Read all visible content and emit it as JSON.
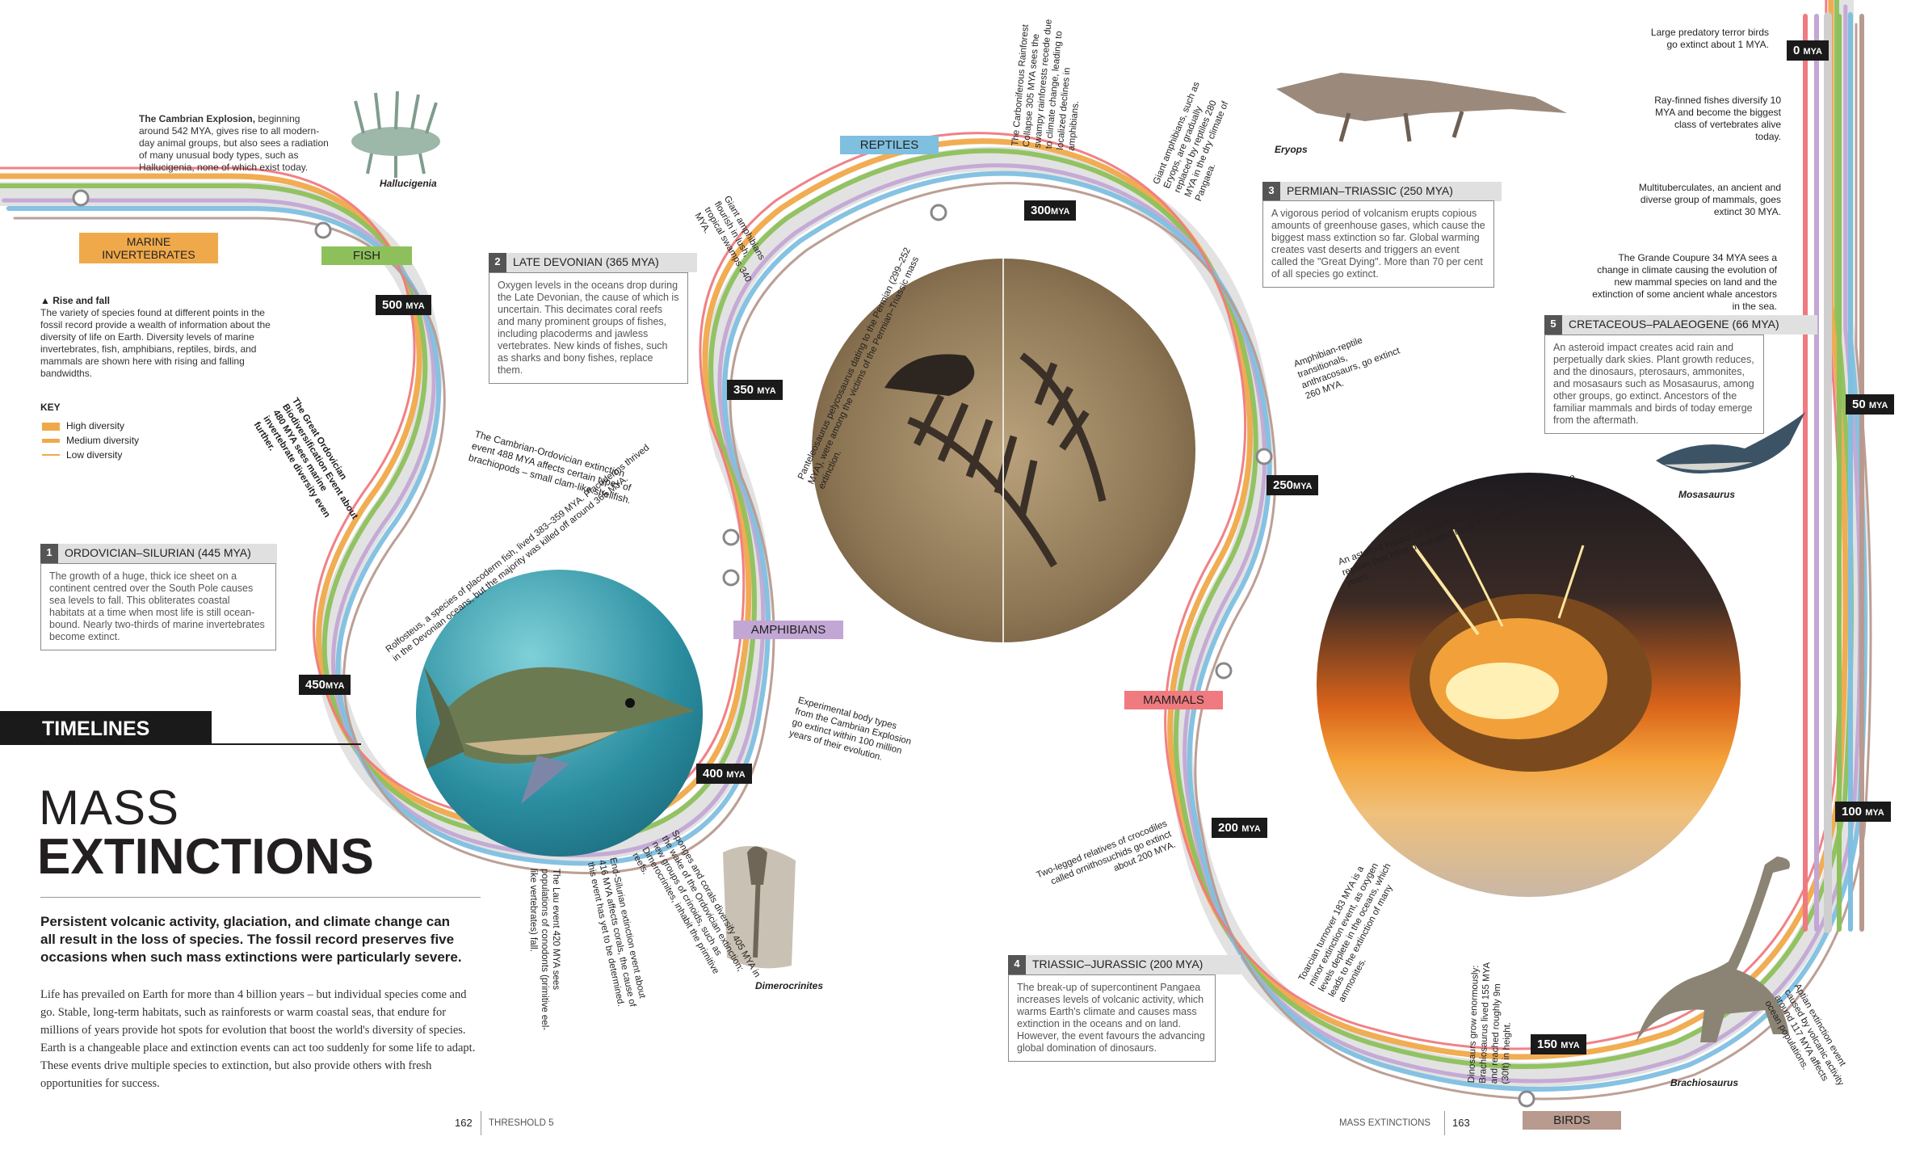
{
  "bands": {
    "colors": {
      "marine_invertebrates": "#f0a94a",
      "fish": "#8dc05b",
      "amphibians": "#c2a6d4",
      "reptiles": "#7fbfe0",
      "mammals": "#ef7a7f",
      "birds": "#b89a8f",
      "grey": "#cfcfcf"
    },
    "labels": {
      "marine": "MARINE INVERTEBRATES",
      "fish": "FISH",
      "reptiles": "REPTILES",
      "amphibians": "AMPHIBIANS",
      "mammals": "MAMMALS",
      "birds": "BIRDS"
    }
  },
  "mya_markers": {
    "m500": "500",
    "m450": "450",
    "m400": "400",
    "m350": "350",
    "m300": "300",
    "m250": "250",
    "m200": "200",
    "m150": "150",
    "m100": "100",
    "m50": "50",
    "m0": "0",
    "unit": "MYA"
  },
  "left": {
    "section": "TIMELINES",
    "title_line1": "MASS",
    "title_line2": "EXTINCTIONS",
    "intro": "Persistent volcanic activity, glaciation, and climate change can all result in the loss of species. The fossil record preserves five occasions when such mass extinctions were particularly severe.",
    "body": "Life has prevailed on Earth for more than 4 billion years – but individual species come and go. Stable, long-term habitats, such as rainforests or warm coastal seas, that endure for millions of years provide hot spots for evolution that boost the world's diversity of species. Earth is a changeable place and extinction events can act too suddenly for some life to adapt. These events drive multiple species to extinction, but also provide others with fresh opportunities for success.",
    "rise_title": "▲ Rise and fall",
    "rise_text": "The variety of species found at different points in the fossil record provide a wealth of information about the diversity of life on Earth. Diversity levels of marine invertebrates, fish, amphibians, reptiles, birds, and mammals are shown here with rising and falling bandwidths.",
    "key_title": "KEY",
    "key": [
      "High diversity",
      "Medium diversity",
      "Low diversity"
    ],
    "cambrian_bold": "The Cambrian Explosion,",
    "cambrian_text": " beginning around 542 MYA, gives rise to all modern-day animal groups, but also sees a radiation of many unusual body types, such as Hallucigenia, none of which exist today.",
    "hallucigenia": "Hallucigenia"
  },
  "events": [
    {
      "num": "1",
      "title": "ORDOVICIAN–SILURIAN (445 MYA)",
      "text": "The growth of a huge, thick ice sheet on a continent centred over the South Pole causes sea levels to fall. This obliterates coastal habitats at a time when most life is still ocean-bound. Nearly two-thirds of marine invertebrates become extinct."
    },
    {
      "num": "2",
      "title": "LATE DEVONIAN (365 MYA)",
      "text": "Oxygen levels in the oceans drop during the Late Devonian, the cause of which is uncertain. This decimates coral reefs and many prominent groups of fishes, including placoderms and jawless vertebrates. New kinds of fishes, such as sharks and bony fishes, replace them."
    },
    {
      "num": "3",
      "title": "PERMIAN–TRIASSIC (250 MYA)",
      "text": "A vigorous period of volcanism erupts copious amounts of greenhouse gases, which cause the biggest mass extinction so far. Global warming creates vast deserts and triggers an event called the \"Great Dying\". More than 70 per cent of all species go extinct."
    },
    {
      "num": "4",
      "title": "TRIASSIC–JURASSIC (200 MYA)",
      "text": "The break-up of supercontinent Pangaea increases levels of volcanic activity, which warms Earth's climate and causes mass extinction in the oceans and on land. However, the event favours the advancing global domination of dinosaurs."
    },
    {
      "num": "5",
      "title": "CRETACEOUS–PALAEOGENE (66 MYA)",
      "text": "An asteroid impact creates acid rain and perpetually dark skies. Plant growth reduces, and the dinosaurs, pterosaurs, ammonites, and mosasaurs such as Mosasaurus, among other groups, go extinct. Ancestors of the familiar mammals and birds of today emerge from the aftermath."
    }
  ],
  "annotations": {
    "ordovician_bio": "The Great Ordovician Biodiversification Event about 480 MYA sees marine invertebrate diversity even further.",
    "cambrian_ord": "The Cambrian-Ordovician extinction event 488 MYA affects certain types of brachiopods – small clam-like shellfish.",
    "rolfosteus": "Rolfosteus, a species of placoderm fish, lived 383–359 MYA. Placoderms thrived in the Devonian oceans, but the majority was killed off around 365 MYA.",
    "lau": "The Lau event 420 MYA sees populations of conodonts (primitive eel-like vertebrates) fall.",
    "end_silurian": "End-Silurian extinction event about 416 MYA affects corals, the cause of this event has yet to be determined.",
    "sponges": "Sponges and corals diversify 405 MYA in the wake of the Ordovician extinction; new groups of crinoids, such as Dimerocrinites, inhabit the primitive reefs.",
    "dimerocrinites": "Dimerocrinites",
    "experimental": "Experimental body types from the Cambrian Explosion go extinct within 100 million years of their evolution.",
    "giant_amph": "Giant amphibians flourish in lush, tropical swamps 340 MYA.",
    "panteleosaurus": "Panteleosaurus pelycosaurus dating to the Permian (299–252 MYA), were among the victims of the Permian–Triassic mass extinction.",
    "carboniferous": "The Carboniferous Rainforest Collapse 305 MYA sees the swampy rainforests recede due to climate change, leading to localized declines in amphibians.",
    "giant_amph2": "Giant amphibians, such as Eryops, are gradually replaced by reptiles 280 MYA in the dry climate of Pangaea.",
    "eryops": "Eryops",
    "amph_rep": "Amphibian-reptile transitionals, anthracosaurs, go extinct 260 MYA.",
    "two_legged": "Two-legged relatives of crocodiles called ornithosuchids go extinct about 200 MYA.",
    "toarcian": "Toarcian turnover 183 MYA is a minor extinction event, as oxygen levels deplete in the oceans, which leads to the extinction of many ammonites.",
    "dinosaurs_grow": "Dinosaurs grow enormously: Brachiosaurus lived 155 MYA and reached roughly 9m (30ft) in height.",
    "aptian": "Aptian extinction event caused by volcanic activity around 117 MYA affects ocean populations.",
    "brachiosaurus": "Brachiosaurus",
    "asteroid": "An asteroid impact 66 MYA spells doom for many of the large reptiles that have dominated Earth for hundreds of millions of years.",
    "mosasaurus": "Mosasaurus",
    "terror_birds": "Large predatory terror birds go extinct about 1 MYA.",
    "rayfinned": "Ray-finned fishes diversify 10 MYA and become the biggest class of vertebrates alive today.",
    "multituberculates": "Multituberculates, an ancient and diverse group of mammals, goes extinct 30 MYA.",
    "grande_coupure": "The Grande Coupure 34 MYA sees a change in climate causing the evolution of new mammal species on land and the extinction of some ancient whale ancestors in the sea."
  },
  "footer": {
    "left_page": "162",
    "left_section": "THRESHOLD 5",
    "right_section": "MASS EXTINCTIONS",
    "right_page": "163"
  }
}
